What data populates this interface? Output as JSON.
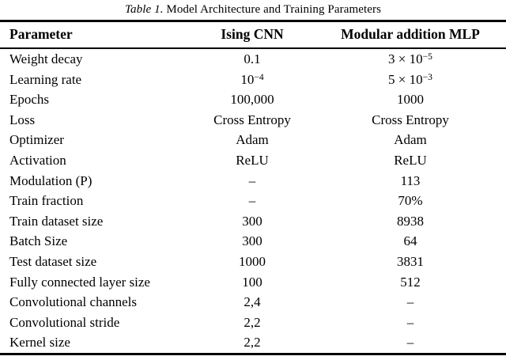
{
  "caption": {
    "label": "Table 1.",
    "title": " Model Architecture and Training Parameters"
  },
  "table": {
    "headers": [
      "Parameter",
      "Ising CNN",
      "Modular addition MLP"
    ],
    "rows": [
      [
        "Weight decay",
        "0.1",
        "3 × 10^{−5}"
      ],
      [
        "Learning rate",
        "10^{−4}",
        "5 × 10^{−3}"
      ],
      [
        "Epochs",
        "100,000",
        "1000"
      ],
      [
        "Loss",
        "Cross Entropy",
        "Cross Entropy"
      ],
      [
        "Optimizer",
        "Adam",
        "Adam"
      ],
      [
        "Activation",
        "ReLU",
        "ReLU"
      ],
      [
        "Modulation (P)",
        "–",
        "113"
      ],
      [
        "Train fraction",
        "–",
        "70%"
      ],
      [
        "Train dataset size",
        "300",
        "8938"
      ],
      [
        "Batch Size",
        "300",
        "64"
      ],
      [
        "Test dataset size",
        "1000",
        "3831"
      ],
      [
        "Fully connected layer size",
        "100",
        "512"
      ],
      [
        "Convolutional channels",
        "2,4",
        "–"
      ],
      [
        "Convolutional stride",
        "2,2",
        "–"
      ],
      [
        "Kernel size",
        "2,2",
        "–"
      ]
    ]
  },
  "colors": {
    "text": "#000000",
    "background": "#ffffff",
    "rule": "#000000"
  }
}
